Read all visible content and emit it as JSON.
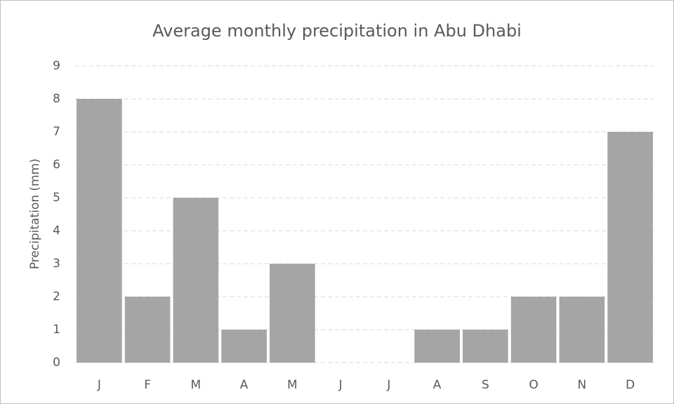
{
  "chart_data": {
    "type": "bar",
    "title": "Average monthly precipitation in Abu Dhabi",
    "y_label": "Precipitation (mm)",
    "categories": [
      "J",
      "F",
      "M",
      "A",
      "M",
      "J",
      "J",
      "A",
      "S",
      "O",
      "N",
      "D"
    ],
    "values": [
      8,
      2,
      5,
      1,
      3,
      0,
      0,
      1,
      1,
      2,
      2,
      7
    ],
    "color": "#a5a5a5",
    "ylim": [
      0,
      9
    ],
    "yticks": [
      0,
      1,
      2,
      3,
      4,
      5,
      6,
      7,
      8,
      9
    ],
    "grid": true
  }
}
